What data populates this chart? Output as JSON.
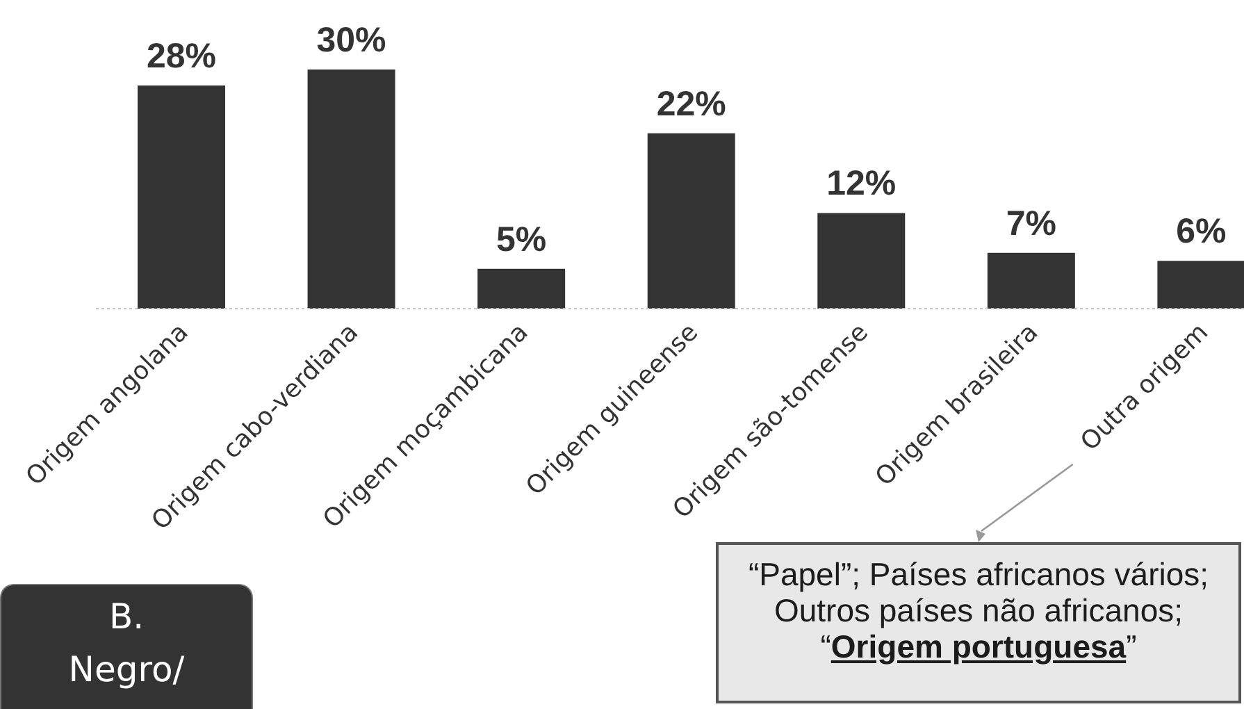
{
  "chart_data": {
    "type": "bar",
    "categories": [
      "Origem angolana",
      "Origem cabo-verdiana",
      "Origem moçambicana",
      "Origem guineense",
      "Origem são-tomense",
      "Origem brasileira",
      "Outra origem"
    ],
    "values": [
      28,
      30,
      5,
      22,
      12,
      7,
      6
    ],
    "value_labels": [
      "28%",
      "30%",
      "5%",
      "22%",
      "12%",
      "7%",
      "6%"
    ],
    "color": "#333333",
    "tick_labels": "x",
    "annotations": [
      "B. Negro/",
      "“Papel”; Países africanos vários; Outros países não africanos; “Origem portuguesa”"
    ]
  }
}
